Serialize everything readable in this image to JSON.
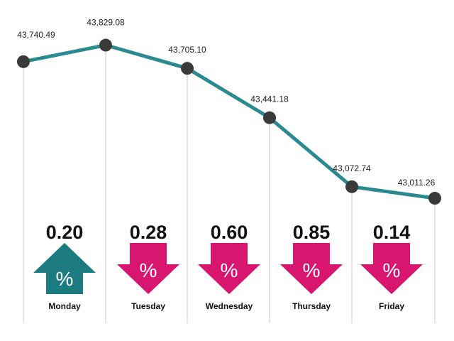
{
  "colors": {
    "line": "#2a8a90",
    "marker": "#3a3a3a",
    "gridline": "#c8c8c8",
    "up": "#1b7b80",
    "down": "#d8166f",
    "text": "#111111"
  },
  "arrow_symbol": "%",
  "chart_data": {
    "type": "line",
    "title": "",
    "xlabel": "",
    "ylabel": "",
    "categories": [
      "Monday",
      "Tuesday",
      "Wednesday",
      "Thursday",
      "Friday"
    ],
    "x": [
      0,
      1,
      2,
      3,
      4,
      5
    ],
    "values": [
      43740.49,
      43829.08,
      43705.1,
      43441.18,
      43072.74,
      43011.26
    ],
    "value_labels": [
      "43,740.49",
      "43,829.08",
      "43,705.10",
      "43,441.18",
      "43,072.74",
      "43,011.26"
    ],
    "ylim": [
      43000,
      43850
    ],
    "grid": false,
    "daily_change": [
      {
        "day": "Monday",
        "percent": "0.20",
        "direction": "up"
      },
      {
        "day": "Tuesday",
        "percent": "0.28",
        "direction": "down"
      },
      {
        "day": "Wednesday",
        "percent": "0.60",
        "direction": "down"
      },
      {
        "day": "Thursday",
        "percent": "0.85",
        "direction": "down"
      },
      {
        "day": "Friday",
        "percent": "0.14",
        "direction": "down"
      }
    ]
  }
}
